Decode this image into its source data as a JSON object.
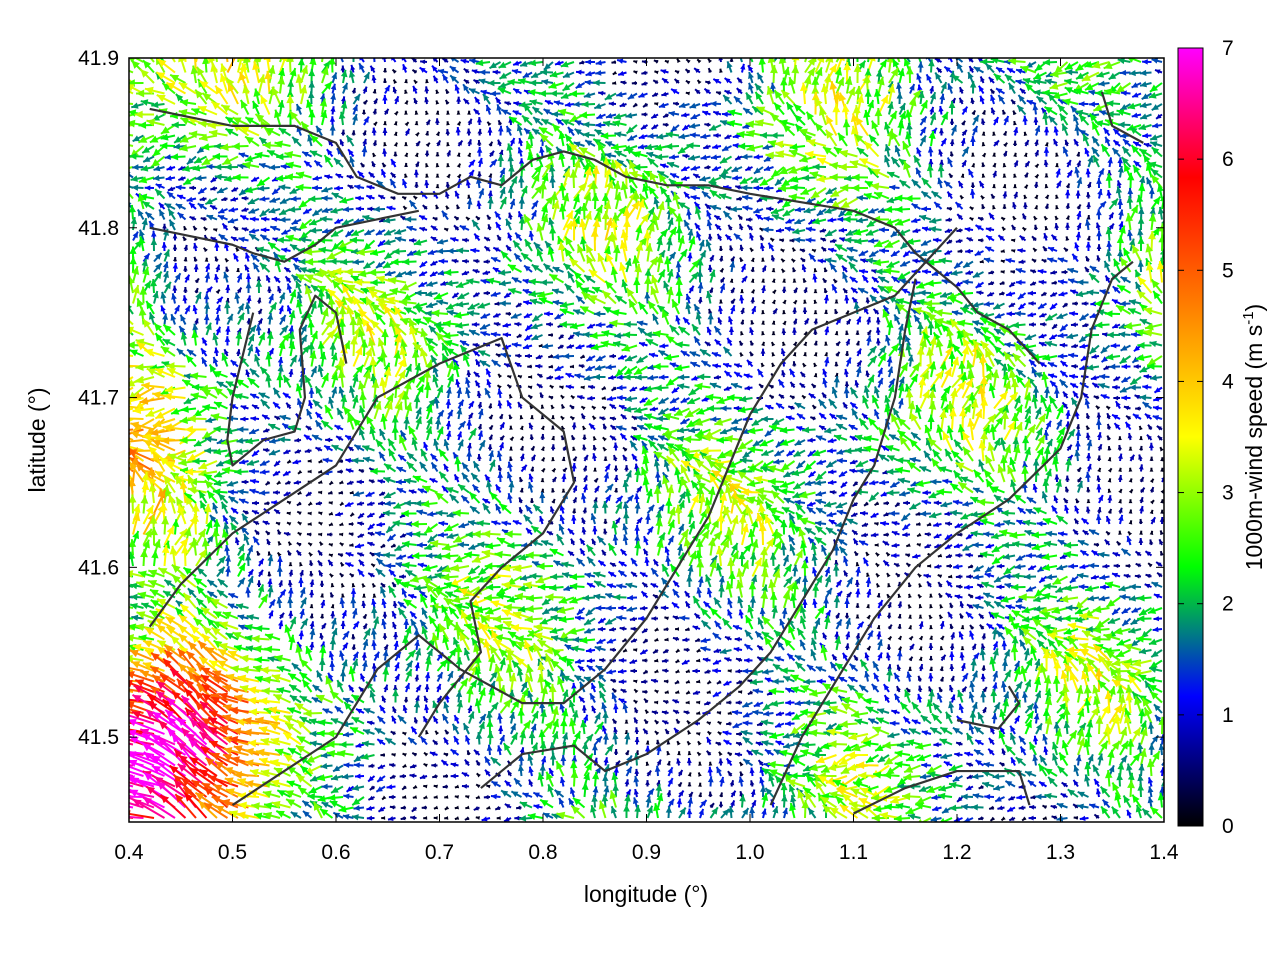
{
  "chart_data": {
    "type": "vector-field",
    "xlabel": "longitude (°)",
    "ylabel": "latitude (°)",
    "xlim": [
      0.4,
      1.4
    ],
    "ylim": [
      41.45,
      41.9
    ],
    "x_ticks": [
      "0.4",
      "0.5",
      "0.6",
      "0.7",
      "0.8",
      "0.9",
      "1.0",
      "1.1",
      "1.2",
      "1.3",
      "1.4"
    ],
    "y_ticks": [
      "41.5",
      "41.6",
      "41.7",
      "41.8",
      "41.9"
    ],
    "colorbar": {
      "label_main": "1000m-wind speed (m s",
      "label_sup": "-1",
      "label_close": ")",
      "range": [
        0,
        7
      ],
      "ticks": [
        "0",
        "1",
        "2",
        "3",
        "4",
        "5",
        "6",
        "7"
      ],
      "colors": [
        "#000000",
        "#0000ff",
        "#00ff00",
        "#ffff00",
        "#ff8000",
        "#ff0000",
        "#ff00ff"
      ]
    },
    "dominant_flow": "west / north-west, weak (1-3 m s-1) across most of the domain",
    "strong_wind_region": {
      "lon": [
        0.4,
        0.55
      ],
      "lat": [
        41.45,
        41.56
      ],
      "speed": [
        4.5,
        7
      ]
    },
    "contours": [
      [
        [
          0.42,
          41.87
        ],
        [
          0.5,
          41.86
        ],
        [
          0.56,
          41.86
        ],
        [
          0.6,
          41.85
        ],
        [
          0.62,
          41.83
        ],
        [
          0.66,
          41.82
        ],
        [
          0.7,
          41.82
        ],
        [
          0.73,
          41.83
        ],
        [
          0.76,
          41.825
        ],
        [
          0.79,
          41.84
        ],
        [
          0.82,
          41.845
        ],
        [
          0.85,
          41.84
        ],
        [
          0.88,
          41.83
        ],
        [
          0.92,
          41.825
        ],
        [
          0.96,
          41.825
        ],
        [
          1.0,
          41.82
        ],
        [
          1.05,
          41.815
        ],
        [
          1.1,
          41.81
        ],
        [
          1.14,
          41.8
        ],
        [
          1.16,
          41.785
        ],
        [
          1.18,
          41.775
        ],
        [
          1.2,
          41.765
        ],
        [
          1.22,
          41.75
        ],
        [
          1.25,
          41.74
        ],
        [
          1.28,
          41.72
        ]
      ],
      [
        [
          0.42,
          41.8
        ],
        [
          0.46,
          41.795
        ],
        [
          0.5,
          41.79
        ],
        [
          0.52,
          41.785
        ],
        [
          0.55,
          41.78
        ],
        [
          0.58,
          41.79
        ],
        [
          0.6,
          41.8
        ],
        [
          0.64,
          41.805
        ],
        [
          0.68,
          41.81
        ]
      ],
      [
        [
          0.52,
          41.75
        ],
        [
          0.5,
          41.7
        ],
        [
          0.495,
          41.675
        ],
        [
          0.5,
          41.66
        ],
        [
          0.53,
          41.675
        ],
        [
          0.56,
          41.68
        ],
        [
          0.57,
          41.7
        ],
        [
          0.565,
          41.74
        ],
        [
          0.58,
          41.76
        ],
        [
          0.6,
          41.75
        ],
        [
          0.61,
          41.72
        ]
      ],
      [
        [
          0.42,
          41.565
        ],
        [
          0.45,
          41.59
        ],
        [
          0.5,
          41.62
        ],
        [
          0.55,
          41.64
        ],
        [
          0.6,
          41.66
        ],
        [
          0.64,
          41.7
        ],
        [
          0.7,
          41.72
        ],
        [
          0.76,
          41.735
        ],
        [
          0.78,
          41.7
        ],
        [
          0.82,
          41.68
        ],
        [
          0.83,
          41.65
        ],
        [
          0.8,
          41.62
        ],
        [
          0.76,
          41.6
        ],
        [
          0.73,
          41.58
        ],
        [
          0.74,
          41.55
        ],
        [
          0.7,
          41.52
        ],
        [
          0.68,
          41.5
        ]
      ],
      [
        [
          0.5,
          41.46
        ],
        [
          0.55,
          41.48
        ],
        [
          0.6,
          41.5
        ],
        [
          0.62,
          41.52
        ],
        [
          0.64,
          41.54
        ],
        [
          0.68,
          41.56
        ],
        [
          0.72,
          41.54
        ],
        [
          0.78,
          41.52
        ],
        [
          0.82,
          41.52
        ],
        [
          0.86,
          41.54
        ],
        [
          0.9,
          41.57
        ],
        [
          0.93,
          41.6
        ],
        [
          0.96,
          41.63
        ],
        [
          0.98,
          41.66
        ],
        [
          1.0,
          41.69
        ],
        [
          1.03,
          41.72
        ],
        [
          1.06,
          41.74
        ],
        [
          1.1,
          41.75
        ],
        [
          1.14,
          41.76
        ],
        [
          1.17,
          41.78
        ],
        [
          1.2,
          41.8
        ]
      ],
      [
        [
          0.74,
          41.47
        ],
        [
          0.78,
          41.49
        ],
        [
          0.83,
          41.495
        ],
        [
          0.86,
          41.48
        ],
        [
          0.9,
          41.49
        ],
        [
          0.95,
          41.51
        ],
        [
          0.99,
          41.53
        ],
        [
          1.02,
          41.55
        ],
        [
          1.05,
          41.58
        ],
        [
          1.08,
          41.61
        ],
        [
          1.1,
          41.64
        ],
        [
          1.12,
          41.66
        ],
        [
          1.14,
          41.7
        ],
        [
          1.15,
          41.74
        ],
        [
          1.16,
          41.77
        ]
      ],
      [
        [
          1.02,
          41.46
        ],
        [
          1.05,
          41.5
        ],
        [
          1.08,
          41.53
        ],
        [
          1.12,
          41.57
        ],
        [
          1.16,
          41.6
        ],
        [
          1.2,
          41.62
        ],
        [
          1.25,
          41.64
        ],
        [
          1.3,
          41.67
        ],
        [
          1.32,
          41.7
        ],
        [
          1.33,
          41.74
        ],
        [
          1.35,
          41.77
        ],
        [
          1.37,
          41.78
        ]
      ],
      [
        [
          1.1,
          41.455
        ],
        [
          1.15,
          41.47
        ],
        [
          1.2,
          41.48
        ],
        [
          1.26,
          41.48
        ],
        [
          1.27,
          41.46
        ]
      ],
      [
        [
          1.2,
          41.51
        ],
        [
          1.24,
          41.505
        ],
        [
          1.26,
          41.52
        ],
        [
          1.25,
          41.53
        ]
      ],
      [
        [
          1.34,
          41.88
        ],
        [
          1.35,
          41.86
        ],
        [
          1.38,
          41.85
        ]
      ]
    ]
  }
}
